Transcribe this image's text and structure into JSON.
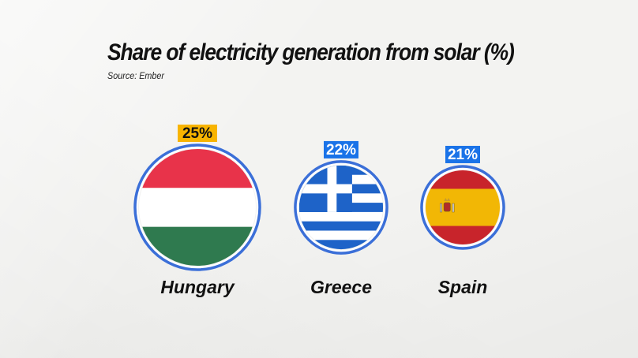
{
  "chart_data": {
    "type": "bubble",
    "title": "Share of electricity generation from solar (%)",
    "source": "Source: Ember",
    "unit": "%",
    "categories": [
      "Hungary",
      "Greece",
      "Spain"
    ],
    "values": [
      25,
      22,
      21
    ],
    "value_labels": [
      "25%",
      "22%",
      "21%"
    ],
    "highlight_color": "#f8b400",
    "label_color": "#1a73e8",
    "circle_border_color": "#3b6fd8",
    "flags": [
      "hungary-flag",
      "greece-flag",
      "spain-flag"
    ]
  }
}
